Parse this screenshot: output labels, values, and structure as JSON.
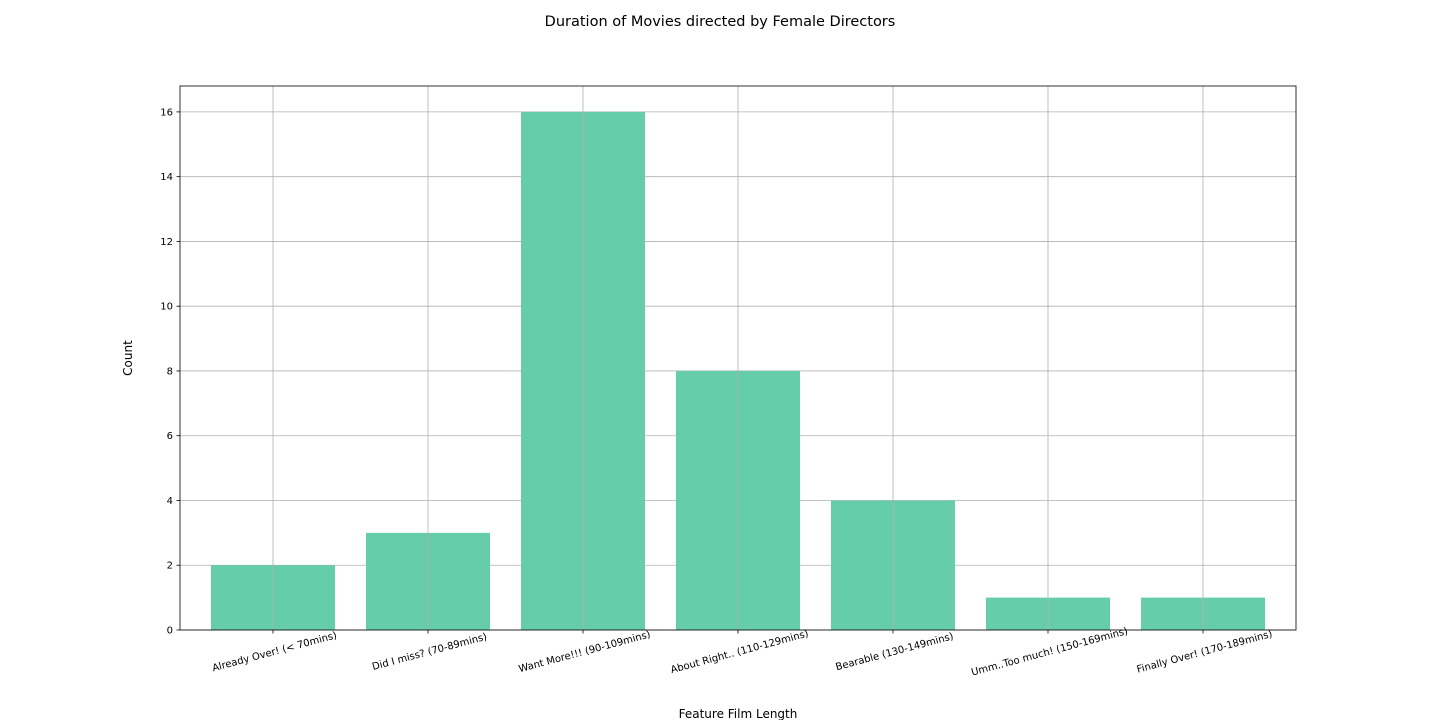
{
  "chart_data": {
    "type": "bar",
    "title": "Duration of Movies directed by Female Directors",
    "xlabel": "Feature Film Length",
    "ylabel": "Count",
    "categories": [
      "Already Over! (< 70mins)",
      "Did I miss? (70-89mins)",
      "Want More!!! (90-109mins)",
      "About Right.. (110-129mins)",
      "Bearable (130-149mins)",
      "Umm..Too much! (150-169mins)",
      "Finally Over! (170-189mins)"
    ],
    "values": [
      2,
      3,
      16,
      8,
      4,
      1,
      1
    ],
    "ylim": [
      0,
      16.8
    ],
    "yticks": [
      0,
      2,
      4,
      6,
      8,
      10,
      12,
      14,
      16
    ],
    "grid": true,
    "bar_color": "#66cdaa"
  }
}
